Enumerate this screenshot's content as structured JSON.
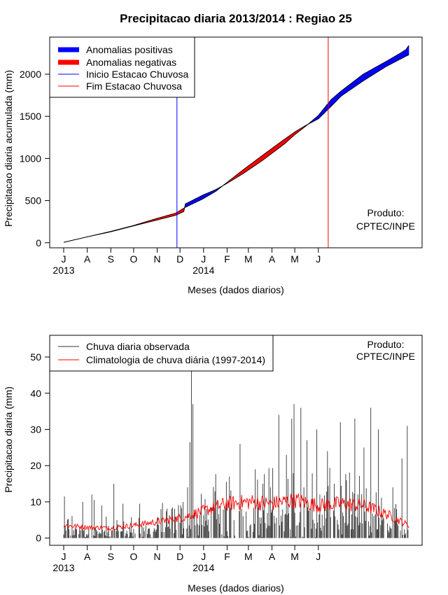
{
  "chart_data": [
    {
      "type": "area",
      "title": "Precipitacao diaria 2013/2014 : Regiao 25",
      "xlabel": "Meses (dados diarios)",
      "ylabel": "Precipitacao diaria acumulada (mm)",
      "month_labels": [
        "J",
        "A",
        "S",
        "O",
        "N",
        "D",
        "J",
        "F",
        "M",
        "A",
        "M",
        "J"
      ],
      "year_labels": [
        "2013",
        "2014"
      ],
      "yticks": [
        0,
        500,
        1000,
        1500,
        2000
      ],
      "ylim": [
        -60,
        2440
      ],
      "legend": [
        "Anomalias positivas",
        "Anomalias negativas",
        "Inicio Estacao Chuvosa",
        "Fim Estacao Chuvosa"
      ],
      "annotation": [
        "Produto:",
        "CPTEC/INPE"
      ],
      "start_rain_season_day": 149,
      "end_rain_season_day": 348,
      "colors": {
        "positive": "#0000ff",
        "negative": "#ff0000",
        "start": "#0000ff",
        "end": "#ff0000"
      },
      "observed_cumulative": [
        {
          "day": 0,
          "value": 5
        },
        {
          "day": 31,
          "value": 70
        },
        {
          "day": 62,
          "value": 130
        },
        {
          "day": 92,
          "value": 200
        },
        {
          "day": 123,
          "value": 270
        },
        {
          "day": 147,
          "value": 325
        },
        {
          "day": 158,
          "value": 370
        },
        {
          "day": 160,
          "value": 460
        },
        {
          "day": 183,
          "value": 565
        },
        {
          "day": 200,
          "value": 630
        },
        {
          "day": 214,
          "value": 700
        },
        {
          "day": 236,
          "value": 820
        },
        {
          "day": 262,
          "value": 980
        },
        {
          "day": 290,
          "value": 1170
        },
        {
          "day": 305,
          "value": 1290
        },
        {
          "day": 318,
          "value": 1380
        },
        {
          "day": 335,
          "value": 1510
        },
        {
          "day": 352,
          "value": 1700
        },
        {
          "day": 365,
          "value": 1800
        },
        {
          "day": 394,
          "value": 2000
        },
        {
          "day": 424,
          "value": 2150
        },
        {
          "day": 443,
          "value": 2250
        },
        {
          "day": 450,
          "value": 2290
        },
        {
          "day": 454,
          "value": 2340
        }
      ],
      "climatology_cumulative": [
        {
          "day": 0,
          "value": 5
        },
        {
          "day": 31,
          "value": 70
        },
        {
          "day": 62,
          "value": 135
        },
        {
          "day": 92,
          "value": 205
        },
        {
          "day": 123,
          "value": 290
        },
        {
          "day": 147,
          "value": 350
        },
        {
          "day": 160,
          "value": 420
        },
        {
          "day": 183,
          "value": 520
        },
        {
          "day": 200,
          "value": 610
        },
        {
          "day": 214,
          "value": 710
        },
        {
          "day": 236,
          "value": 865
        },
        {
          "day": 262,
          "value": 1040
        },
        {
          "day": 290,
          "value": 1225
        },
        {
          "day": 305,
          "value": 1320
        },
        {
          "day": 318,
          "value": 1390
        },
        {
          "day": 335,
          "value": 1470
        },
        {
          "day": 352,
          "value": 1620
        },
        {
          "day": 365,
          "value": 1740
        },
        {
          "day": 394,
          "value": 1920
        },
        {
          "day": 424,
          "value": 2090
        },
        {
          "day": 443,
          "value": 2180
        },
        {
          "day": 454,
          "value": 2230
        }
      ]
    },
    {
      "type": "bar",
      "xlabel": "Meses (dados diarios)",
      "ylabel": "Precipitacao diaria (mm)",
      "month_labels": [
        "J",
        "A",
        "S",
        "O",
        "N",
        "D",
        "J",
        "F",
        "M",
        "A",
        "M",
        "J"
      ],
      "year_labels": [
        "2013",
        "2014"
      ],
      "yticks": [
        0,
        10,
        20,
        30,
        40,
        50
      ],
      "ylim": [
        -2,
        56
      ],
      "legend": [
        "Chuva diaria observada",
        "Climatologia de chuva diária (1997-2014)"
      ],
      "annotation": [
        "Produto:",
        "CPTEC/INPE"
      ],
      "colors": {
        "observed": "#333333",
        "climatology": "#ff0000"
      },
      "observed_peaks": [
        {
          "day": 1,
          "value": 11.5
        },
        {
          "day": 25,
          "value": 10
        },
        {
          "day": 37,
          "value": 12
        },
        {
          "day": 40,
          "value": 10.5
        },
        {
          "day": 50,
          "value": 9
        },
        {
          "day": 66,
          "value": 15
        },
        {
          "day": 78,
          "value": 9.5
        },
        {
          "day": 100,
          "value": 9.5
        },
        {
          "day": 128,
          "value": 8
        },
        {
          "day": 143,
          "value": 8.5
        },
        {
          "day": 154,
          "value": 9
        },
        {
          "day": 163,
          "value": 14
        },
        {
          "day": 166,
          "value": 26.5
        },
        {
          "day": 168,
          "value": 47
        },
        {
          "day": 170,
          "value": 37
        },
        {
          "day": 188,
          "value": 8
        },
        {
          "day": 202,
          "value": 10
        },
        {
          "day": 218,
          "value": 17
        },
        {
          "day": 232,
          "value": 26
        },
        {
          "day": 252,
          "value": 19
        },
        {
          "day": 262,
          "value": 15
        },
        {
          "day": 272,
          "value": 14
        },
        {
          "day": 283,
          "value": 34
        },
        {
          "day": 293,
          "value": 23
        },
        {
          "day": 300,
          "value": 33
        },
        {
          "day": 303,
          "value": 37
        },
        {
          "day": 312,
          "value": 36
        },
        {
          "day": 316,
          "value": 14
        },
        {
          "day": 320,
          "value": 27
        },
        {
          "day": 333,
          "value": 30
        },
        {
          "day": 347,
          "value": 24
        },
        {
          "day": 356,
          "value": 15
        },
        {
          "day": 364,
          "value": 32
        },
        {
          "day": 372,
          "value": 16
        },
        {
          "day": 383,
          "value": 33
        },
        {
          "day": 395,
          "value": 25
        },
        {
          "day": 404,
          "value": 36
        },
        {
          "day": 414,
          "value": 30
        },
        {
          "day": 433,
          "value": 14
        },
        {
          "day": 445,
          "value": 22
        },
        {
          "day": 452,
          "value": 31
        }
      ],
      "climatology_curve": [
        {
          "day": 0,
          "value": 3.5
        },
        {
          "day": 31,
          "value": 3
        },
        {
          "day": 62,
          "value": 2.8
        },
        {
          "day": 92,
          "value": 3.5
        },
        {
          "day": 123,
          "value": 4.5
        },
        {
          "day": 153,
          "value": 5.5
        },
        {
          "day": 184,
          "value": 7.5
        },
        {
          "day": 214,
          "value": 9.5
        },
        {
          "day": 245,
          "value": 10
        },
        {
          "day": 273,
          "value": 9.5
        },
        {
          "day": 304,
          "value": 10.5
        },
        {
          "day": 334,
          "value": 9
        },
        {
          "day": 365,
          "value": 9.5
        },
        {
          "day": 395,
          "value": 9
        },
        {
          "day": 426,
          "value": 6.5
        },
        {
          "day": 454,
          "value": 3.5
        }
      ]
    }
  ]
}
